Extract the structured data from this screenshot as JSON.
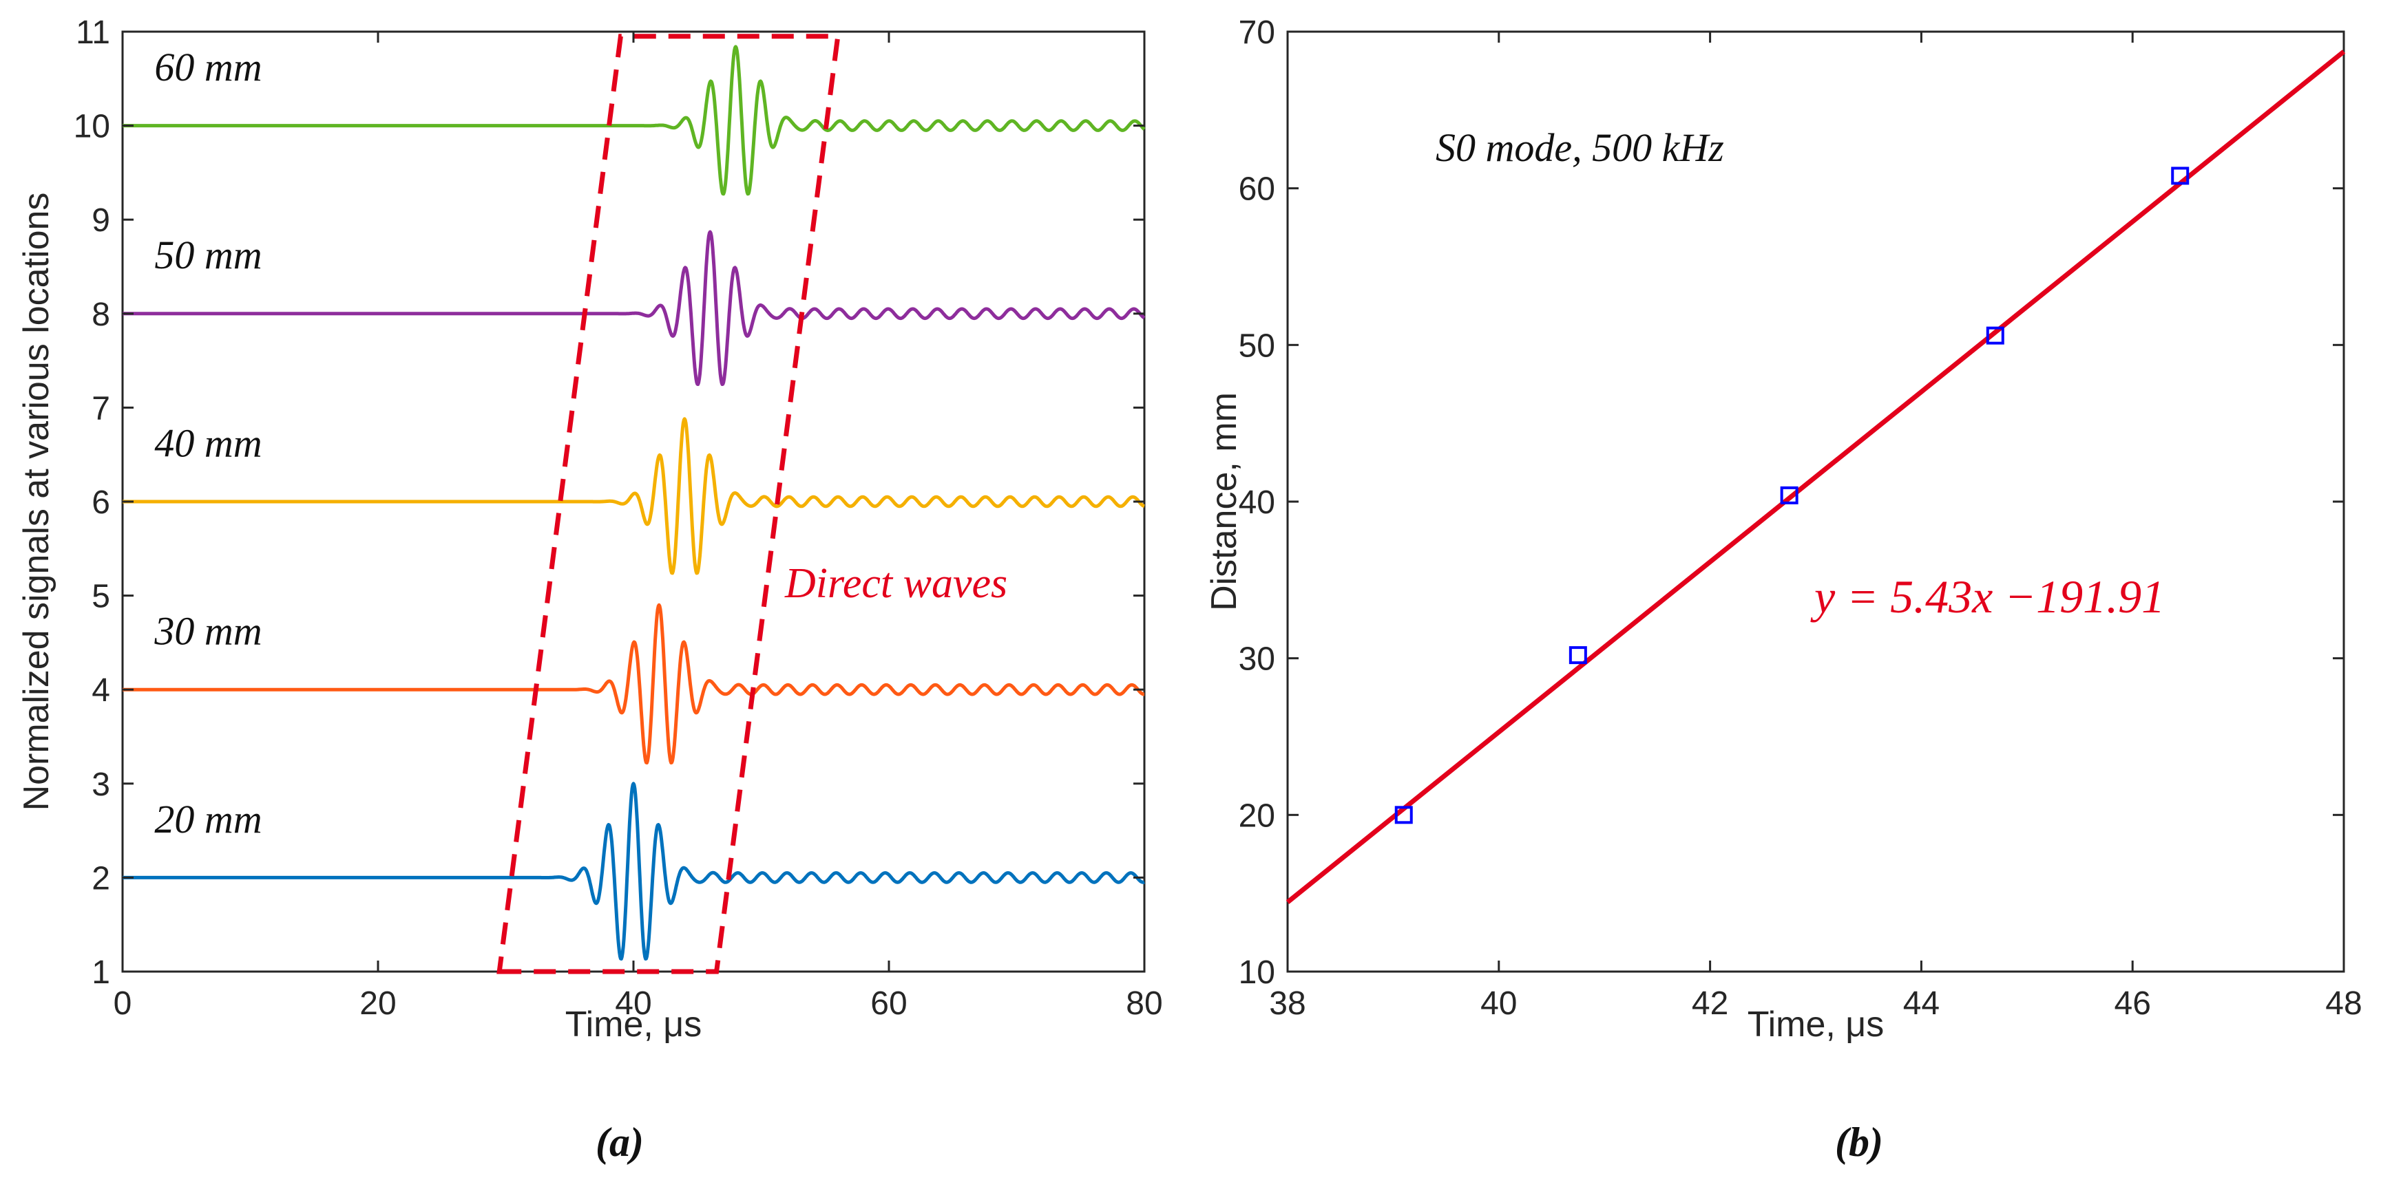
{
  "chart_data": [
    {
      "panel_label": "(a)",
      "type": "line",
      "title": "",
      "xlabel": "Time, μs",
      "ylabel": "Normalized signals at various locations",
      "xlim": [
        0,
        80
      ],
      "ylim": [
        1,
        11
      ],
      "xticks": [
        "0",
        "20",
        "40",
        "60",
        "80"
      ],
      "yticks": [
        "1",
        "2",
        "3",
        "4",
        "5",
        "6",
        "7",
        "8",
        "9",
        "10",
        "11"
      ],
      "grid": false,
      "series": [
        {
          "name": "20 mm",
          "baseline": 2,
          "arrival_us": 40,
          "peak_amplitude": 1.0,
          "color": "#0072BD"
        },
        {
          "name": "30 mm",
          "baseline": 4,
          "arrival_us": 42,
          "peak_amplitude": 0.9,
          "color": "#ff5a14"
        },
        {
          "name": "40 mm",
          "baseline": 6,
          "arrival_us": 44,
          "peak_amplitude": 0.88,
          "color": "#f5b000"
        },
        {
          "name": "50 mm",
          "baseline": 8,
          "arrival_us": 46,
          "peak_amplitude": 0.87,
          "color": "#8e2d9c"
        },
        {
          "name": "60 mm",
          "baseline": 10,
          "arrival_us": 48,
          "peak_amplitude": 0.84,
          "color": "#5fb523"
        }
      ],
      "annotation": {
        "text": "Direct waves",
        "color": "#e3001b",
        "region_polygon": [
          [
            29.5,
            1.0
          ],
          [
            46.5,
            1.0
          ],
          [
            56,
            10.95
          ],
          [
            39,
            10.95
          ]
        ]
      }
    },
    {
      "panel_label": "(b)",
      "type": "scatter",
      "title": "",
      "subtitle": "S0 mode, 500 kHz",
      "xlabel": "Time, μs",
      "ylabel": "Distance, mm",
      "xlim": [
        38,
        48
      ],
      "ylim": [
        10,
        70
      ],
      "xticks": [
        "38",
        "40",
        "42",
        "44",
        "46",
        "48"
      ],
      "yticks": [
        "10",
        "20",
        "30",
        "40",
        "50",
        "60",
        "70"
      ],
      "grid": false,
      "points": {
        "x": [
          39.1,
          40.75,
          42.75,
          44.7,
          46.45
        ],
        "y": [
          20,
          30.2,
          40.4,
          50.6,
          60.8
        ],
        "marker_color": "#0000ff"
      },
      "fit": {
        "slope": 5.43,
        "intercept": -191.91,
        "color": "#e3001b",
        "equation": "y = 5.43x −191.91"
      }
    }
  ]
}
